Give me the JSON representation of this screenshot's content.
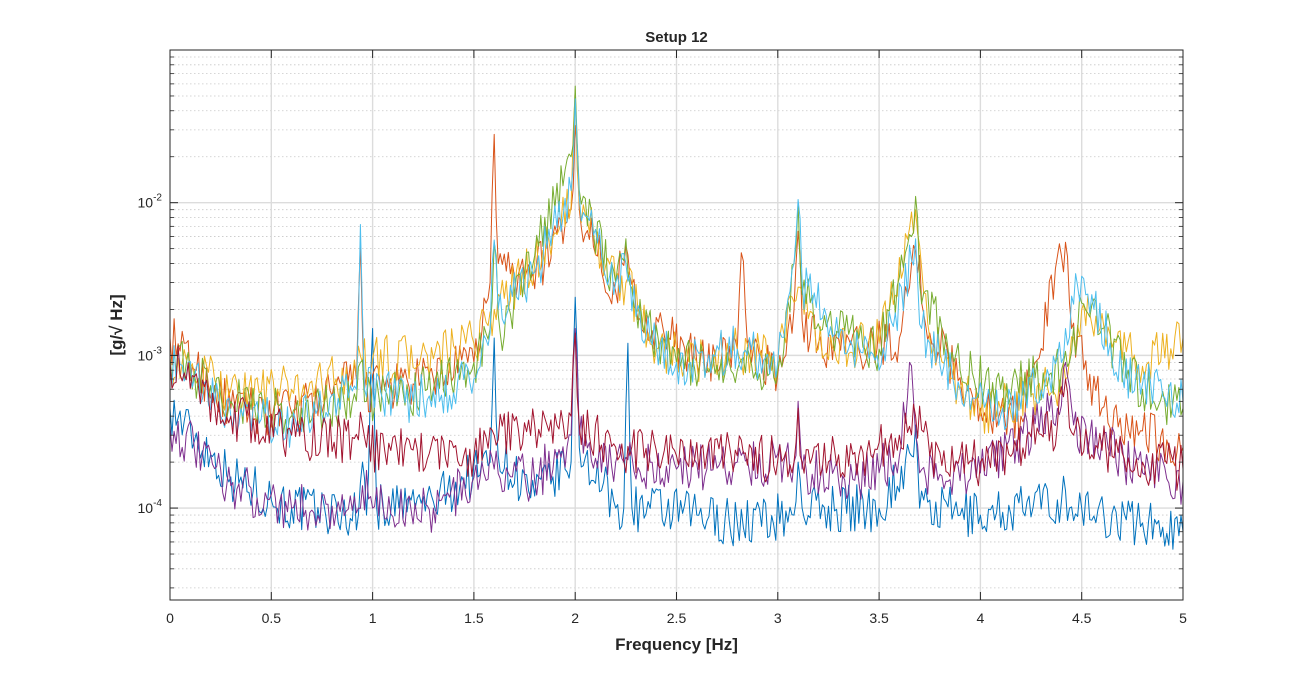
{
  "chart_data": {
    "type": "line",
    "title": "Setup 12",
    "xlabel": "Frequency [Hz]",
    "ylabel": "[g/√ Hz]",
    "xlim": [
      0,
      5
    ],
    "ylim": [
      2.5e-05,
      0.1
    ],
    "yscale": "log",
    "grid": true,
    "minor_grid": true,
    "x_ticks": [
      0,
      0.5,
      1,
      1.5,
      2,
      2.5,
      3,
      3.5,
      4,
      4.5,
      5
    ],
    "x_tick_labels": [
      "0",
      "0.5",
      "1",
      "1.5",
      "2",
      "2.5",
      "3",
      "3.5",
      "4",
      "4.5",
      "5"
    ],
    "y_ticks": [
      0.0001,
      0.001,
      0.01
    ],
    "y_tick_labels": [
      {
        "base": "10",
        "exp": "-4"
      },
      {
        "base": "10",
        "exp": "-3"
      },
      {
        "base": "10",
        "exp": "-2"
      }
    ],
    "series": [
      {
        "color": "#0072BD",
        "x": [
          0,
          0.3,
          0.6,
          0.93,
          0.95,
          0.97,
          1.0,
          1.02,
          1.3,
          1.58,
          1.6,
          1.62,
          1.8,
          1.98,
          2.0,
          2.02,
          2.2,
          2.24,
          2.26,
          2.28,
          2.6,
          2.8,
          3.08,
          3.1,
          3.12,
          3.5,
          3.66,
          3.68,
          3.7,
          4.0,
          4.4,
          4.42,
          4.44,
          4.8,
          5.0
        ],
        "y": [
          0.00045,
          0.00016,
          0.0001,
          9e-05,
          0.0002,
          9e-05,
          0.0015,
          0.0001,
          0.00011,
          0.0002,
          0.0013,
          0.00022,
          0.00012,
          0.0002,
          0.0024,
          0.00025,
          0.0001,
          0.0001,
          0.0012,
          0.0001,
          9e-05,
          8e-05,
          9e-05,
          0.0002,
          0.0001,
          0.0001,
          0.00022,
          0.00035,
          0.0001,
          9e-05,
          0.00011,
          0.00013,
          0.0001,
          8e-05,
          7e-05
        ]
      },
      {
        "color": "#D95319",
        "x": [
          0,
          0.3,
          0.6,
          0.92,
          0.94,
          0.96,
          1.2,
          1.5,
          1.58,
          1.6,
          1.62,
          1.7,
          1.85,
          1.98,
          2.0,
          2.02,
          2.2,
          2.25,
          2.3,
          2.6,
          2.8,
          2.82,
          2.85,
          3.0,
          3.08,
          3.1,
          3.12,
          3.2,
          3.4,
          3.6,
          3.68,
          3.75,
          4.0,
          4.2,
          4.4,
          4.42,
          4.45,
          4.6,
          4.8,
          5.0
        ],
        "y": [
          0.0013,
          0.00045,
          0.00042,
          0.0007,
          0.0055,
          0.0006,
          0.00065,
          0.0009,
          0.003,
          0.028,
          0.004,
          0.0033,
          0.0042,
          0.009,
          0.032,
          0.009,
          0.0026,
          0.0052,
          0.002,
          0.0009,
          0.0011,
          0.0047,
          0.0012,
          0.00075,
          0.002,
          0.0065,
          0.0017,
          0.0012,
          0.0011,
          0.0013,
          0.0048,
          0.0014,
          0.00045,
          0.0004,
          0.0045,
          0.0055,
          0.0015,
          0.00045,
          0.00032,
          0.00025
        ]
      },
      {
        "color": "#EDB120",
        "x": [
          0,
          0.3,
          0.6,
          0.92,
          0.95,
          1.0,
          1.3,
          1.5,
          1.6,
          1.8,
          1.98,
          2.0,
          2.02,
          2.2,
          2.25,
          2.4,
          2.6,
          2.8,
          3.0,
          3.1,
          3.2,
          3.5,
          3.68,
          3.75,
          3.9,
          4.0,
          4.42,
          4.5,
          4.55,
          4.8,
          5.0
        ],
        "y": [
          0.0009,
          0.0006,
          0.0006,
          0.00075,
          0.0009,
          0.00095,
          0.00095,
          0.0012,
          0.002,
          0.004,
          0.0095,
          0.055,
          0.01,
          0.003,
          0.003,
          0.0011,
          0.0009,
          0.0011,
          0.0009,
          0.0028,
          0.0011,
          0.0012,
          0.009,
          0.0013,
          0.0006,
          0.0004,
          0.0007,
          0.002,
          0.0016,
          0.00085,
          0.0013
        ]
      },
      {
        "color": "#7E2F8E",
        "x": [
          0,
          0.3,
          0.6,
          0.93,
          0.95,
          1.0,
          1.3,
          1.6,
          1.8,
          1.98,
          2.0,
          2.02,
          2.2,
          2.5,
          2.8,
          3.08,
          3.1,
          3.12,
          3.4,
          3.6,
          3.65,
          3.68,
          3.7,
          4.0,
          4.38,
          4.42,
          4.46,
          4.8,
          5.0
        ],
        "y": [
          0.00035,
          0.00014,
          0.0001,
          0.0001,
          0.00014,
          0.0001,
          0.0001,
          0.00018,
          0.00015,
          0.0003,
          0.0015,
          0.0003,
          0.0002,
          0.00018,
          0.0002,
          0.0002,
          0.0005,
          0.00018,
          0.00015,
          0.00022,
          0.0009,
          0.0003,
          0.00017,
          0.00017,
          0.00045,
          0.0009,
          0.00035,
          0.00017,
          0.00015
        ]
      },
      {
        "color": "#77AC30",
        "x": [
          0,
          0.3,
          0.6,
          0.92,
          0.94,
          0.97,
          1.3,
          1.5,
          1.58,
          1.6,
          1.63,
          1.8,
          1.98,
          2.0,
          2.02,
          2.2,
          2.25,
          2.3,
          2.5,
          2.8,
          3.0,
          3.08,
          3.1,
          3.12,
          3.3,
          3.5,
          3.66,
          3.68,
          3.7,
          3.9,
          4.1,
          4.4,
          4.44,
          4.5,
          4.6,
          4.8,
          5.0
        ],
        "y": [
          0.001,
          0.0005,
          0.0004,
          0.0005,
          0.0009,
          0.0005,
          0.0006,
          0.0009,
          0.0015,
          0.0055,
          0.0014,
          0.0045,
          0.02,
          0.058,
          0.012,
          0.003,
          0.0058,
          0.002,
          0.0009,
          0.0008,
          0.0008,
          0.004,
          0.0098,
          0.0025,
          0.0014,
          0.0011,
          0.006,
          0.011,
          0.003,
          0.0008,
          0.0006,
          0.0008,
          0.0009,
          0.0022,
          0.0015,
          0.0006,
          0.00045
        ]
      },
      {
        "color": "#4DBEEE",
        "x": [
          0,
          0.3,
          0.6,
          0.92,
          0.94,
          0.96,
          1.2,
          1.5,
          1.58,
          1.6,
          1.62,
          1.8,
          1.98,
          2.0,
          2.02,
          2.2,
          2.25,
          2.3,
          2.5,
          2.8,
          3.0,
          3.08,
          3.1,
          3.12,
          3.3,
          3.5,
          3.66,
          3.68,
          3.7,
          3.9,
          4.1,
          4.4,
          4.42,
          4.5,
          4.55,
          4.7,
          4.8,
          5.0
        ],
        "y": [
          0.0009,
          0.0004,
          0.00035,
          0.0006,
          0.0072,
          0.0006,
          0.0005,
          0.0007,
          0.0014,
          0.0057,
          0.002,
          0.0035,
          0.012,
          0.048,
          0.011,
          0.003,
          0.004,
          0.0018,
          0.0009,
          0.0011,
          0.0009,
          0.004,
          0.0105,
          0.003,
          0.0013,
          0.0008,
          0.0042,
          0.0058,
          0.0016,
          0.0006,
          0.0004,
          0.0009,
          0.0015,
          0.0033,
          0.0025,
          0.00075,
          0.00065,
          0.0005
        ]
      },
      {
        "color": "#A2142F",
        "x": [
          0,
          0.3,
          0.6,
          0.93,
          0.95,
          0.97,
          1.2,
          1.5,
          1.6,
          1.8,
          1.98,
          2.0,
          2.02,
          2.2,
          2.5,
          2.8,
          3.08,
          3.1,
          3.12,
          3.4,
          3.6,
          3.68,
          3.75,
          4.0,
          4.38,
          4.42,
          4.46,
          4.8,
          5.0
        ],
        "y": [
          0.0009,
          0.0004,
          0.0003,
          0.00028,
          0.00035,
          0.00025,
          0.00024,
          0.00022,
          0.0003,
          0.00035,
          0.0004,
          0.0014,
          0.00035,
          0.00025,
          0.00022,
          0.00022,
          0.0002,
          0.00045,
          0.0002,
          0.00022,
          0.0003,
          0.0004,
          0.00022,
          0.0002,
          0.00035,
          0.0007,
          0.0003,
          0.0002,
          0.00018
        ]
      }
    ]
  }
}
